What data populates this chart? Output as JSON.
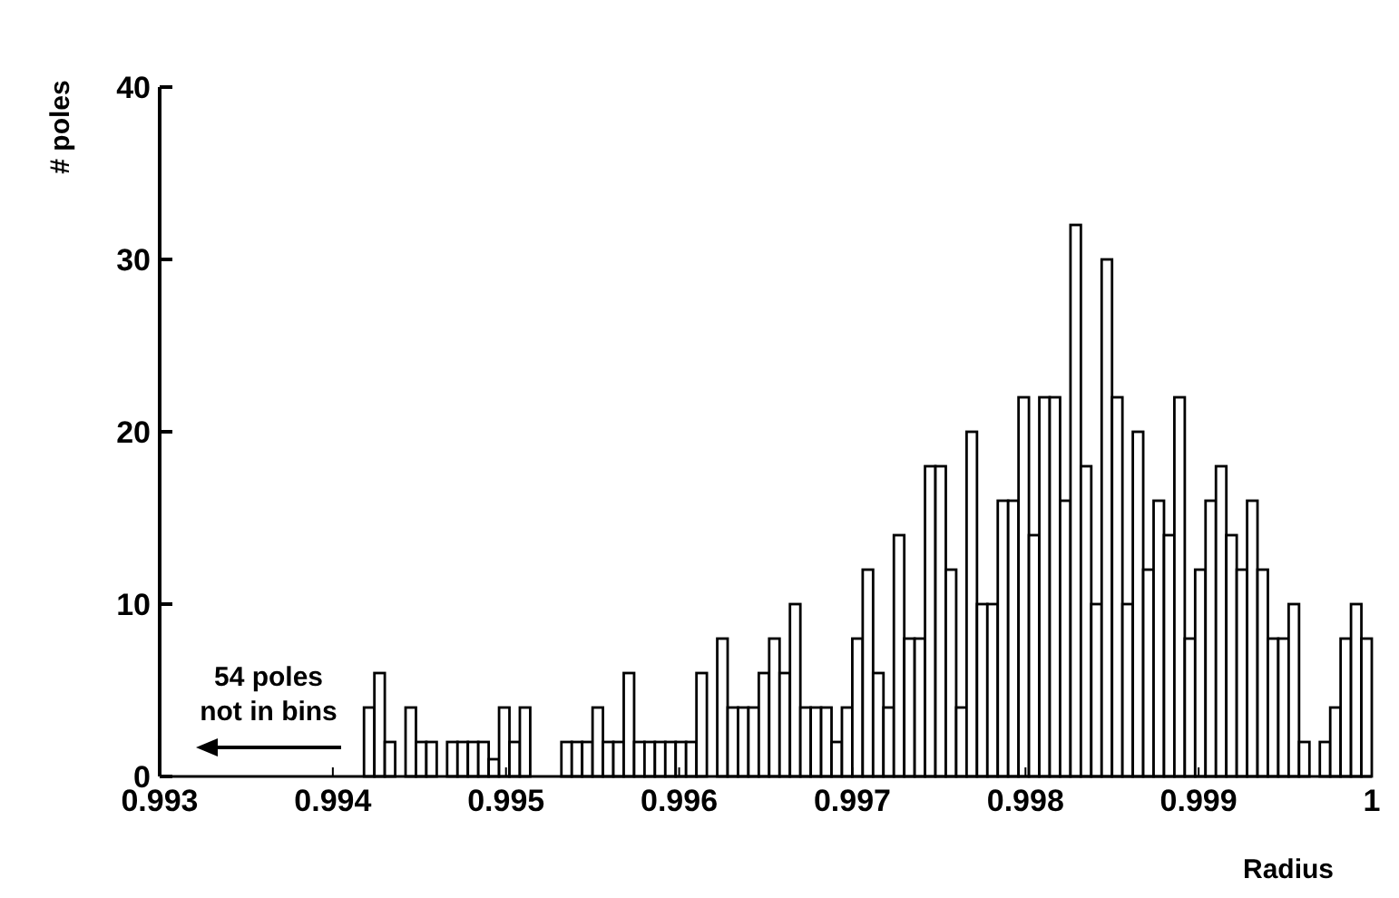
{
  "chart_data": {
    "type": "histogram",
    "xlabel": "Radius",
    "ylabel": "# poles",
    "bins": [
      0.99418,
      0.99424,
      0.9943,
      0.99436,
      0.99442,
      0.99448,
      0.99454,
      0.9946,
      0.99466,
      0.99472,
      0.99478,
      0.99484,
      0.9949,
      0.99496,
      0.99502,
      0.99508,
      0.99514,
      0.9952,
      0.99526,
      0.99532,
      0.99538,
      0.99544,
      0.9955,
      0.99556,
      0.99562,
      0.99568,
      0.99574,
      0.9958,
      0.99586,
      0.99592,
      0.99598,
      0.99604,
      0.9961,
      0.99616,
      0.99622,
      0.99628,
      0.99634,
      0.9964,
      0.99646,
      0.99652,
      0.99658,
      0.99664,
      0.9967,
      0.99676,
      0.99682,
      0.99688,
      0.99694,
      0.997,
      0.99706,
      0.99712,
      0.99718,
      0.99724,
      0.9973,
      0.99736,
      0.99742,
      0.99748,
      0.99754,
      0.9976,
      0.99766,
      0.99772,
      0.99778,
      0.99784,
      0.9979,
      0.99796,
      0.99802,
      0.99808,
      0.99814,
      0.9982,
      0.99826,
      0.99832,
      0.99838,
      0.99844,
      0.9985,
      0.99856,
      0.99862,
      0.99868,
      0.99874,
      0.9988,
      0.99886,
      0.99892,
      0.99898,
      0.99904,
      0.9991,
      0.99916,
      0.99922,
      0.99928,
      0.99934,
      0.9994,
      0.99946,
      0.99952,
      0.99958,
      0.99964,
      0.9997,
      0.99976,
      0.99982,
      0.99988,
      0.99994,
      1
    ],
    "values": [
      4,
      6,
      2,
      0,
      4,
      2,
      2,
      0,
      2,
      2,
      2,
      2,
      1,
      4,
      2,
      4,
      0,
      0,
      0,
      2,
      2,
      2,
      4,
      2,
      2,
      6,
      2,
      2,
      2,
      2,
      2,
      2,
      6,
      0,
      8,
      4,
      4,
      4,
      6,
      8,
      6,
      10,
      4,
      4,
      4,
      2,
      4,
      8,
      12,
      6,
      4,
      14,
      8,
      8,
      18,
      18,
      12,
      4,
      20,
      10,
      10,
      16,
      16,
      22,
      14,
      22,
      22,
      16,
      32,
      18,
      10,
      30,
      22,
      10,
      20,
      12,
      16,
      14,
      22,
      8,
      12,
      16,
      18,
      14,
      12,
      16,
      12,
      8,
      8,
      10,
      2,
      0,
      2,
      4,
      8,
      10,
      8
    ],
    "color": "#ffffff",
    "xlim": [
      0.993,
      1
    ],
    "xticks": [
      0.993,
      0.994,
      0.995,
      0.996,
      0.997,
      0.998,
      0.999,
      1
    ],
    "ylim": [
      0,
      40
    ],
    "yticks": [
      0,
      10,
      20,
      30,
      40
    ],
    "grid": false,
    "annotations": [
      "54 poles\nnot in bins"
    ]
  }
}
